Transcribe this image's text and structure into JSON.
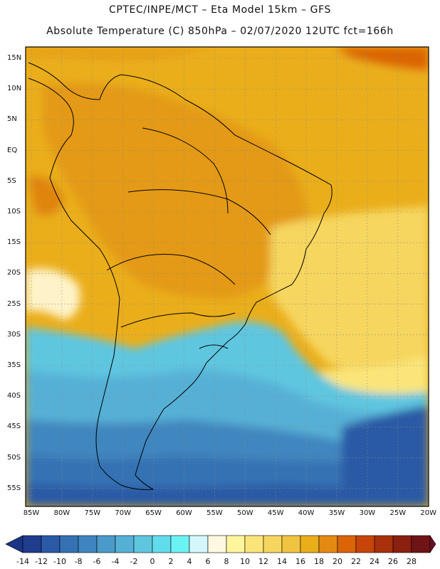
{
  "header": {
    "line1": "CPTEC/INPE/MCT –  Eta Model 15km – GFS",
    "line2": "Absolute Temperature (C) 850hPa – 02/07/2020 12UTC fct=166h"
  },
  "map": {
    "lat_labels": [
      "15N",
      "10N",
      "5N",
      "EQ",
      "5S",
      "10S",
      "15S",
      "20S",
      "25S",
      "30S",
      "35S",
      "40S",
      "45S",
      "50S",
      "55S"
    ],
    "lon_labels": [
      "85W",
      "80W",
      "75W",
      "70W",
      "65W",
      "60W",
      "55W",
      "50W",
      "45W",
      "40W",
      "35W",
      "30W",
      "25W",
      "20W"
    ]
  },
  "colorbar": {
    "ticks": [
      "-14",
      "-12",
      "-10",
      "-8",
      "-6",
      "-4",
      "-2",
      "0",
      "2",
      "4",
      "6",
      "8",
      "10",
      "12",
      "14",
      "16",
      "18",
      "20",
      "22",
      "24",
      "26",
      "28"
    ],
    "colors": [
      "#1f3d8c",
      "#2a5aa5",
      "#3572b4",
      "#3f86bf",
      "#4a9bc9",
      "#56b0d5",
      "#5fc6e0",
      "#62dcea",
      "#6bf3f4",
      "#d3f7fb",
      "#fff8e1",
      "#fef59c",
      "#fbe57a",
      "#f6d65f",
      "#f0c440",
      "#eaae1b",
      "#e48a12",
      "#db6406",
      "#c7450a",
      "#a8300b",
      "#8a2010",
      "#6e1414"
    ],
    "under_color": "#1a3585",
    "over_color": "#6b0e2a"
  }
}
